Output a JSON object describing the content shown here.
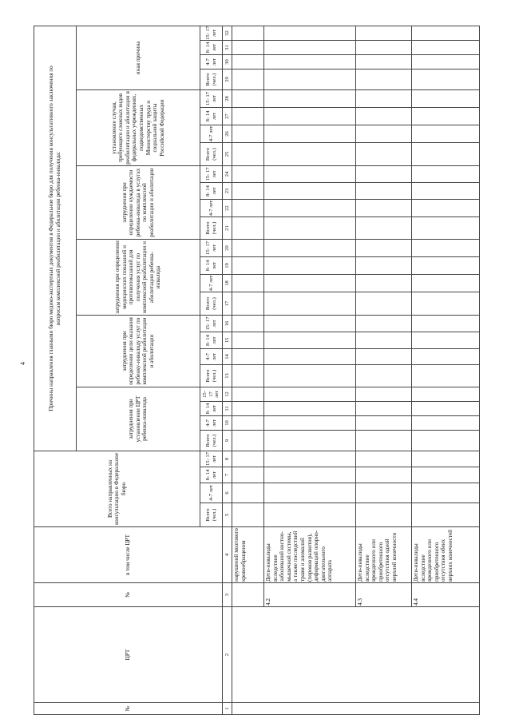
{
  "page_number": "4",
  "header": {
    "col1": "№",
    "col2": "ЦРТ",
    "col3": "№",
    "col4": "в том числе ЦРТ",
    "total_group": "Всего направленных на консультацию в Федеральное бюро",
    "reasons_title": "Причины направления главными бюро медико-экспертных документов в Федеральное бюро для получения консультативного заключения по вопросам комплексной реабилитации и абилитации ребенка-инвалида:",
    "reason_groups": [
      "затруднения при установлении ЦРТ ребенка-инвалида",
      "затруднения при определении цели оказания ребенку-инвалиду услуг по комплексной реабилитации и абилитации",
      "затруднения при определении медицинских показаний и противопоказаний для получения услуг по комплексной реабилитации и абилитации ребенка-инвалида",
      "затруднения при определении нуждаемости ребенка-инвалида в услугах по комплексной реабилитации и абилитации",
      "установление случая, требующего сложных видов реабилитации и абилитации в федеральных учреждениях, подведомственных Министерству труда и социальной защиты Российской Федерации",
      "иная причина"
    ],
    "age_labels": [
      "Всего (чел.)",
      "4-7 лет",
      "8- 14 лет",
      "15- 17 лет"
    ],
    "column_numbers": [
      "1",
      "2",
      "3",
      "4",
      "5",
      "6",
      "7",
      "8",
      "9",
      "10",
      "11",
      "12",
      "13",
      "14",
      "15",
      "16",
      "17",
      "18",
      "19",
      "20",
      "21",
      "22",
      "23",
      "24",
      "25",
      "26",
      "27",
      "28",
      "29",
      "30",
      "31",
      "32"
    ]
  },
  "rows": [
    {
      "num": "",
      "text": "нарушений мозгового кровообращения"
    },
    {
      "num": "4.2",
      "text": "Дети-инвалиды вследствие заболеваний костно-мышечной системы, а также последствий травм и аномалий (пороков развития), деформаций опорно-двигательного аппарата"
    },
    {
      "num": "4.3",
      "text": "Дети-инвалиды вследствие врожденного или приобретенного отсутствия одной верхней конечности"
    },
    {
      "num": "4.4",
      "text": "Дети-инвалиды вследствие врожденного или приобретенного отсутствия обеих верхних конечностей"
    }
  ]
}
